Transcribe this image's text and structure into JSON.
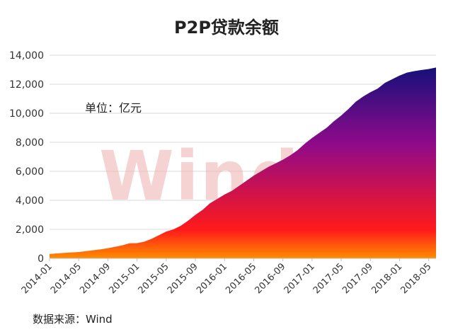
{
  "chart_data": {
    "type": "area",
    "title": "P2P贷款余额",
    "unit_label": "单位：亿元",
    "source": "数据来源：Wind",
    "watermark": "Wind",
    "ylim": [
      0,
      14000
    ],
    "y_ticks": [
      "0",
      "2,000",
      "4,000",
      "6,000",
      "8,000",
      "10,000",
      "12,000",
      "14,000"
    ],
    "x_tick_labels": [
      "2014-01",
      "2014-05",
      "2014-09",
      "2015-01",
      "2015-05",
      "2015-09",
      "2016-01",
      "2016-05",
      "2016-09",
      "2017-01",
      "2017-05",
      "2017-09",
      "2018-01",
      "2018-05"
    ],
    "grid": true,
    "colors": {
      "top": "#15107a",
      "mid": "#8f0a8a",
      "low": "#ff1a1a",
      "bottom": "#ff8c00"
    },
    "series": [
      {
        "x": [
          "2014-01",
          "2014-02",
          "2014-03",
          "2014-04",
          "2014-05",
          "2014-06",
          "2014-07",
          "2014-08",
          "2014-09",
          "2014-10",
          "2014-11",
          "2014-12",
          "2015-01",
          "2015-02",
          "2015-03",
          "2015-04",
          "2015-05",
          "2015-06",
          "2015-07",
          "2015-08",
          "2015-09",
          "2015-10",
          "2015-11",
          "2015-12",
          "2016-01",
          "2016-02",
          "2016-03",
          "2016-04",
          "2016-05",
          "2016-06",
          "2016-07",
          "2016-08",
          "2016-09",
          "2016-10",
          "2016-11",
          "2016-12",
          "2017-01",
          "2017-02",
          "2017-03",
          "2017-04",
          "2017-05",
          "2017-06",
          "2017-07",
          "2017-08",
          "2017-09",
          "2017-10",
          "2017-11",
          "2017-12",
          "2018-01",
          "2018-02",
          "2018-03",
          "2018-04",
          "2018-05",
          "2018-06"
        ],
        "values": [
          300,
          340,
          380,
          410,
          440,
          500,
          560,
          620,
          700,
          800,
          900,
          1040,
          1050,
          1150,
          1350,
          1600,
          1850,
          2000,
          2250,
          2600,
          3000,
          3350,
          3800,
          4100,
          4400,
          4650,
          5000,
          5350,
          5700,
          6000,
          6300,
          6550,
          6800,
          7100,
          7450,
          7900,
          8300,
          8650,
          9000,
          9450,
          9850,
          10300,
          10800,
          11150,
          11450,
          11700,
          12100,
          12350,
          12600,
          12800,
          12900,
          12980,
          13050,
          13150
        ]
      }
    ]
  }
}
